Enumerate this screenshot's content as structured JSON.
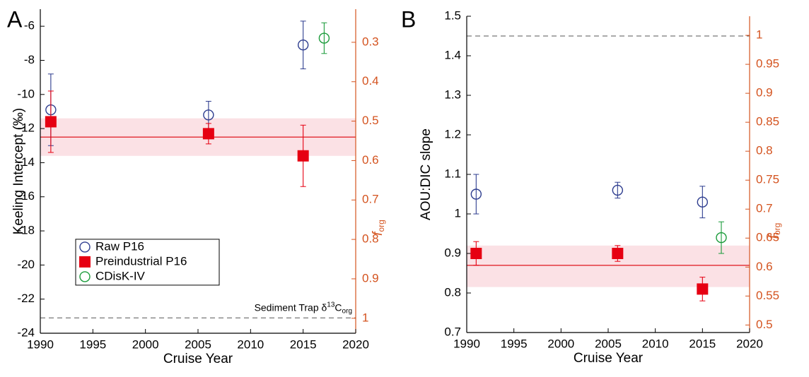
{
  "chart_data": [
    {
      "type": "scatter",
      "panel_label": "A",
      "x_label": "Cruise Year",
      "y_label": "Keeling Intercept (‰)",
      "y2_label": "f",
      "y2_label_sub": "org",
      "y2_color": "#d4531f",
      "xlim": [
        1990,
        2020
      ],
      "xticks": [
        1990,
        1995,
        2000,
        2005,
        2010,
        2015,
        2020
      ],
      "ylim": [
        -24,
        -5
      ],
      "yticks": [
        -24,
        -22,
        -20,
        -18,
        -16,
        -14,
        -12,
        -10,
        -8,
        -6
      ],
      "y2lim": [
        1.038,
        0.216
      ],
      "y2ticks": [
        0.3,
        0.4,
        0.5,
        0.6,
        0.7,
        0.8,
        0.9,
        1
      ],
      "legend": "center left",
      "reference_line": {
        "value": -12.5,
        "low": -13.6,
        "high": -11.4,
        "color": "#e2262e",
        "band_color": "#fbe1e5"
      },
      "dashed_line": -23.1,
      "annotation": {
        "text": "Sediment Trap δ",
        "sup": "13",
        "main": "C",
        "sub": "org"
      },
      "series": [
        {
          "name": "Raw P16",
          "color": "#2e3d8f",
          "marker": "open-circle",
          "x": [
            1991,
            2006,
            2015
          ],
          "values": [
            -10.9,
            -11.2,
            -7.1
          ],
          "errors": [
            2.1,
            0.8,
            1.4
          ]
        },
        {
          "name": "Preindustrial P16",
          "color": "#e60012",
          "marker": "square",
          "x": [
            1991,
            2006,
            2015
          ],
          "values": [
            -11.6,
            -12.3,
            -13.6
          ],
          "errors": [
            1.8,
            0.6,
            1.8
          ]
        },
        {
          "name": "CDisK-IV",
          "color": "#1a9b3a",
          "marker": "open-circle",
          "x": [
            2017
          ],
          "values": [
            -6.7
          ],
          "errors": [
            0.9
          ]
        }
      ]
    },
    {
      "type": "scatter",
      "panel_label": "B",
      "x_label": "Cruise Year",
      "y_label": "AOU:DIC slope",
      "y2_label": "f",
      "y2_label_sub": "org",
      "y2_color": "#d4531f",
      "xlim": [
        1990,
        2020
      ],
      "xticks": [
        1990,
        1995,
        2000,
        2005,
        2010,
        2015,
        2020
      ],
      "ylim": [
        0.7,
        1.5
      ],
      "yticks": [
        0.7,
        0.8,
        0.9,
        1,
        1.1,
        1.2,
        1.3,
        1.4,
        1.5
      ],
      "y2lim": [
        0.487,
        1.033
      ],
      "y2ticks": [
        0.5,
        0.55,
        0.6,
        0.65,
        0.7,
        0.75,
        0.8,
        0.85,
        0.9,
        0.95,
        1
      ],
      "reference_line": {
        "value": 0.87,
        "low": 0.815,
        "high": 0.92,
        "color": "#e2262e",
        "band_color": "#fbe1e5"
      },
      "dashed_line": 1.45,
      "series": [
        {
          "color": "#2e3d8f",
          "marker": "open-circle",
          "x": [
            1991,
            2006,
            2015
          ],
          "values": [
            1.05,
            1.06,
            1.03
          ],
          "errors": [
            0.05,
            0.02,
            0.04
          ]
        },
        {
          "color": "#e60012",
          "marker": "square",
          "x": [
            1991,
            2006,
            2015
          ],
          "values": [
            0.9,
            0.9,
            0.81
          ],
          "errors": [
            0.03,
            0.02,
            0.03
          ]
        },
        {
          "color": "#1a9b3a",
          "marker": "open-circle",
          "x": [
            2017
          ],
          "values": [
            0.94
          ],
          "errors": [
            0.04
          ]
        }
      ]
    }
  ]
}
